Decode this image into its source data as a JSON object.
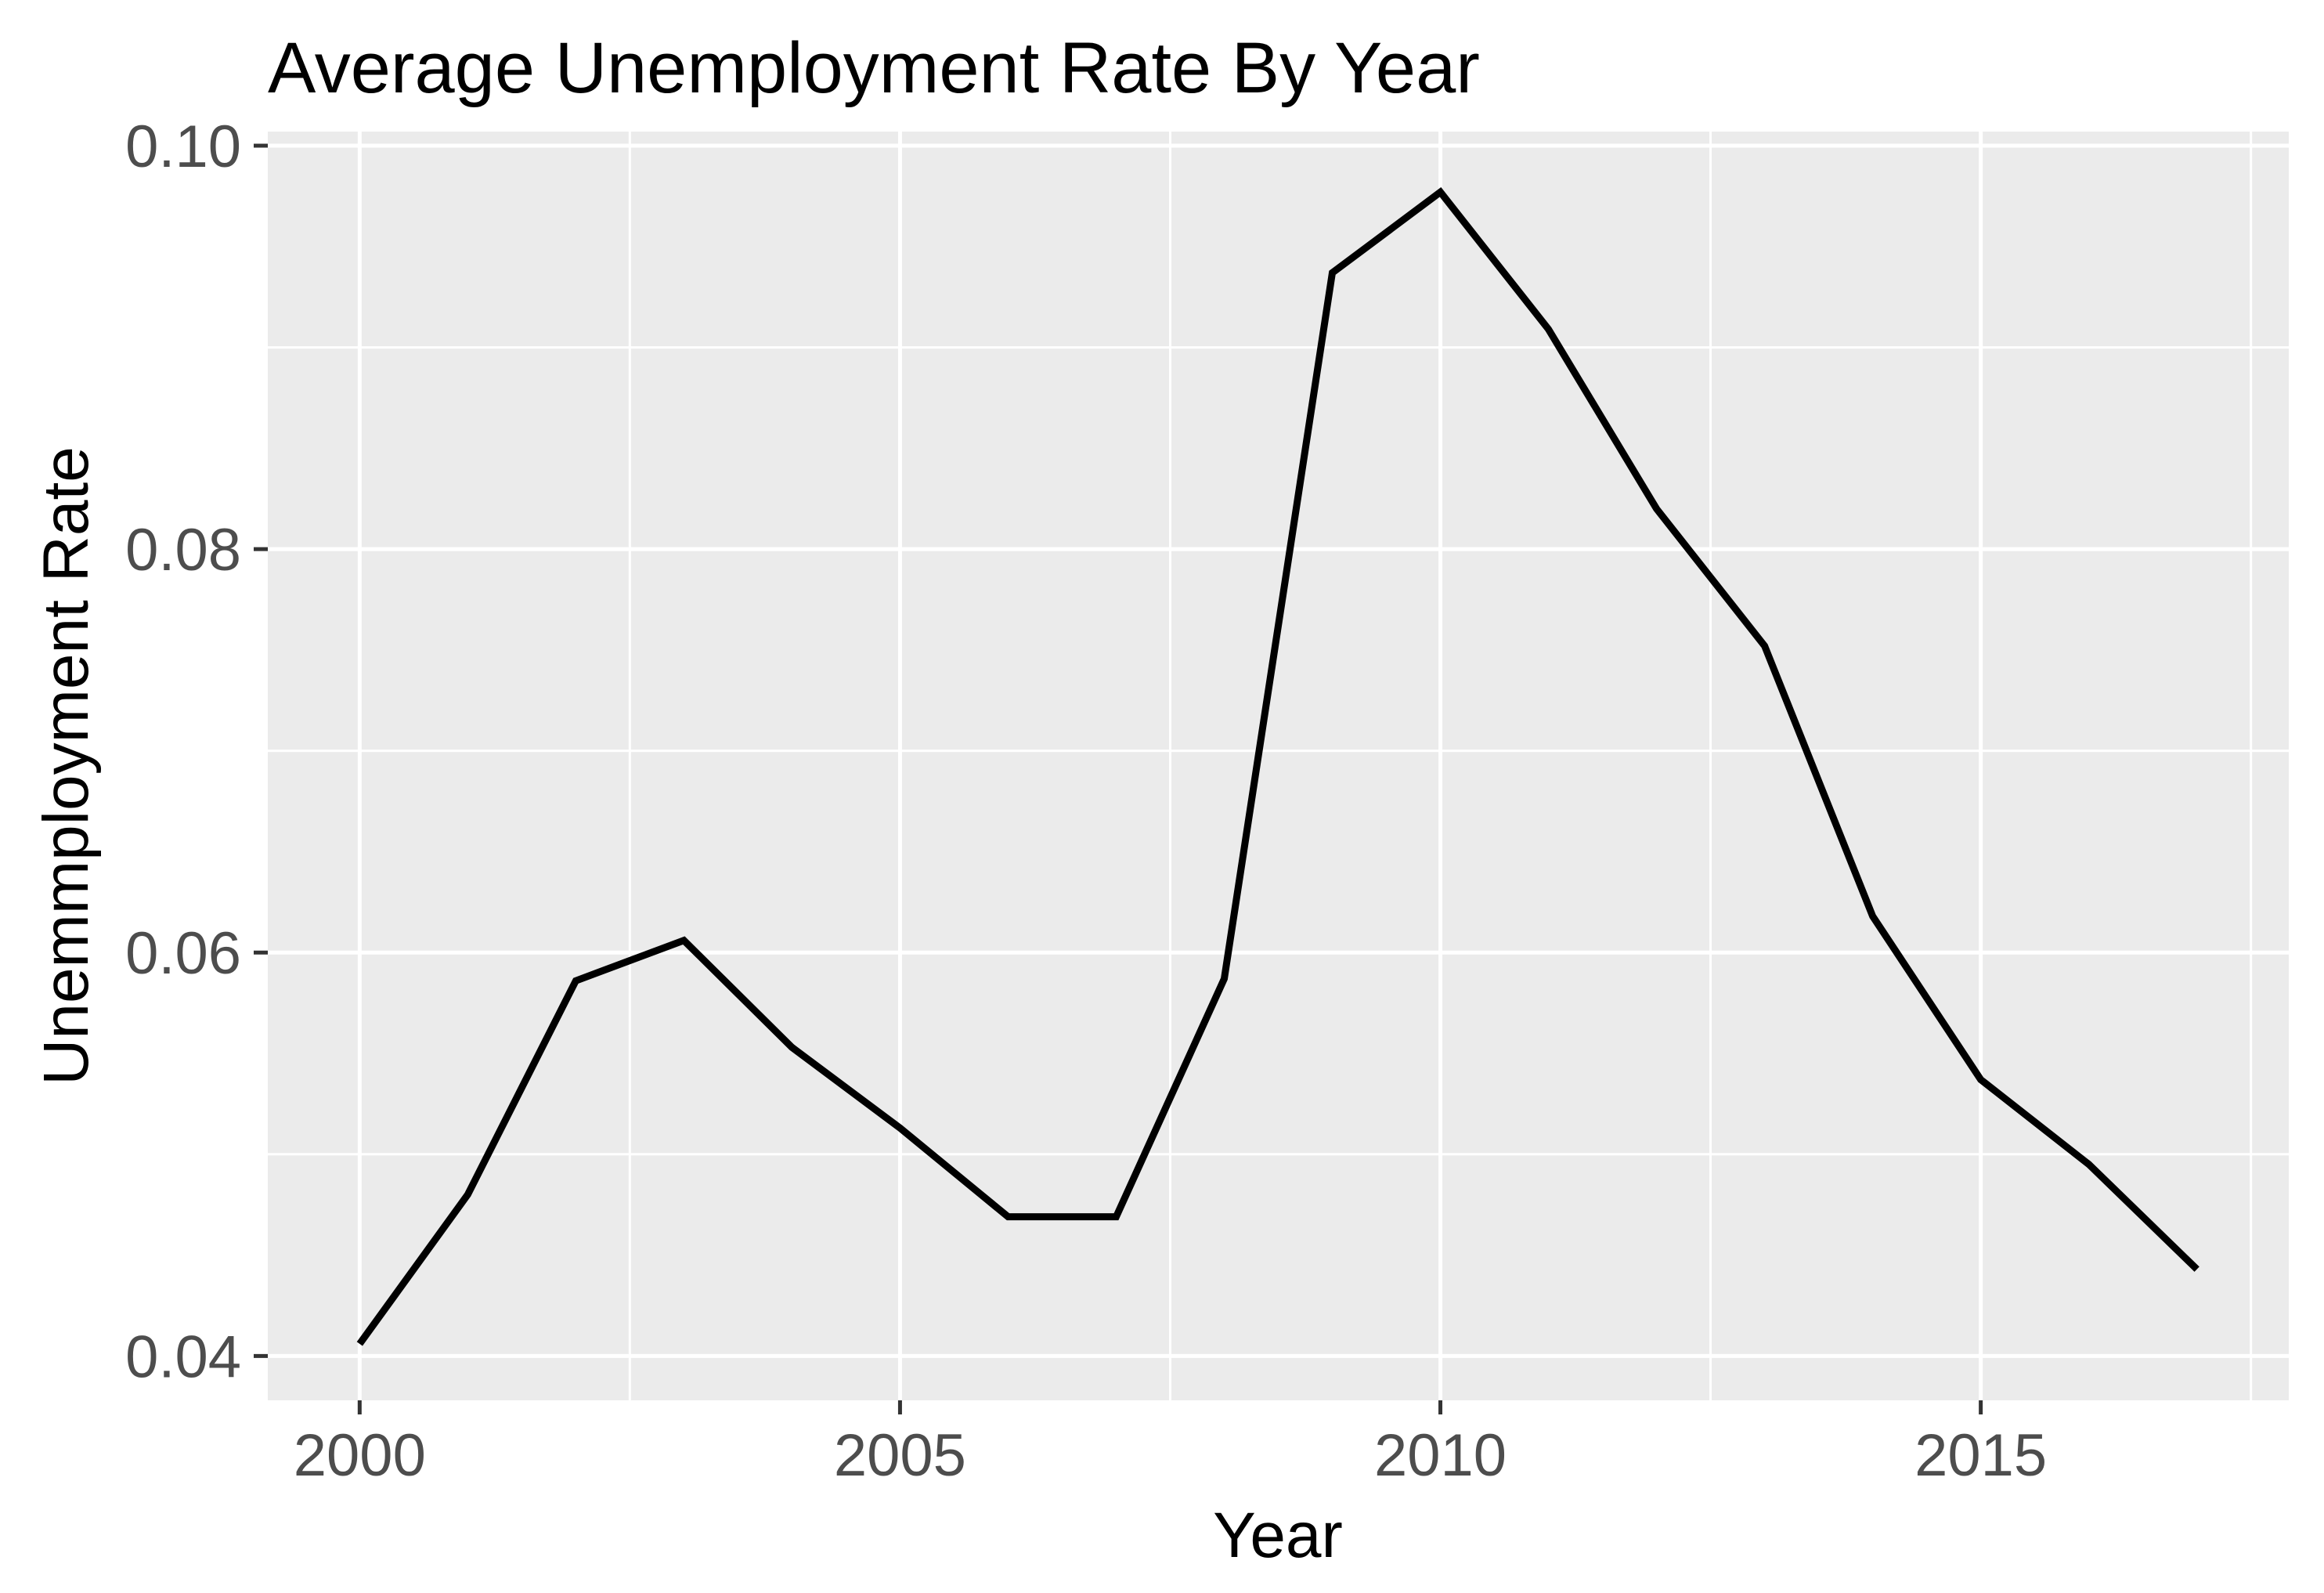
{
  "chart_data": {
    "type": "line",
    "title": "Average Unemployment Rate By Year",
    "xlabel": "Year",
    "ylabel": "Unemmployment Rate",
    "legend_position": "none",
    "grid": {
      "major": true,
      "minor": true
    },
    "x": [
      2000,
      2001,
      2002,
      2003,
      2004,
      2005,
      2006,
      2007,
      2008,
      2009,
      2010,
      2011,
      2012,
      2013,
      2014,
      2015,
      2016,
      2017
    ],
    "values": [
      0.0406,
      0.048,
      0.0586,
      0.0606,
      0.0553,
      0.0513,
      0.0469,
      0.0469,
      0.0587,
      0.0937,
      0.0977,
      0.0909,
      0.082,
      0.0752,
      0.0618,
      0.0537,
      0.0495,
      0.0443
    ],
    "xlim": [
      1999.15,
      2017.85
    ],
    "ylim": [
      0.0378,
      0.1007
    ],
    "x_major_ticks": [
      2000,
      2005,
      2010,
      2015
    ],
    "x_tick_labels": [
      "2000",
      "2005",
      "2010",
      "2015"
    ],
    "x_minor_ticks": [
      2002.5,
      2007.5,
      2012.5,
      2017.5
    ],
    "y_major_ticks": [
      0.04,
      0.06,
      0.08,
      0.1
    ],
    "y_tick_labels": [
      "0.04",
      "0.06",
      "0.08",
      "0.10"
    ],
    "y_minor_ticks": [
      0.05,
      0.07,
      0.09
    ],
    "colors": {
      "panel_background": "#EBEBEB",
      "grid_major": "#FFFFFF",
      "grid_minor": "#FFFFFF",
      "line": "#000000",
      "tick_mark": "#333333",
      "tick_label": "#4D4D4D",
      "title_text": "#000000",
      "page_background": "#FFFFFF"
    }
  }
}
